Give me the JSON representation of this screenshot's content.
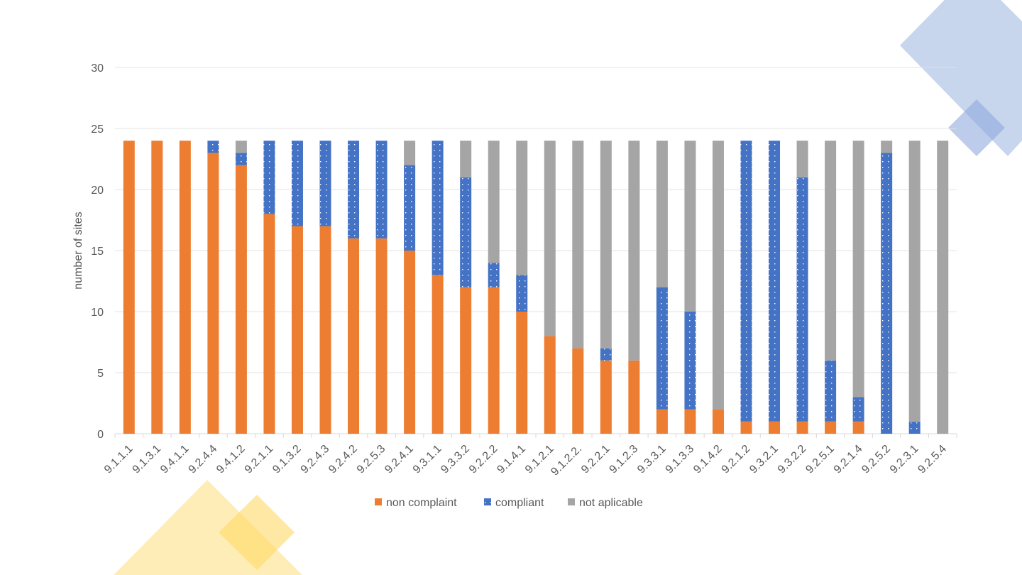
{
  "chart_data": {
    "type": "bar",
    "stacked": true,
    "title": "",
    "xlabel": "",
    "ylabel": "number of sites",
    "ylim": [
      0,
      30
    ],
    "yticks": [
      0,
      5,
      10,
      15,
      20,
      25,
      30
    ],
    "grid": true,
    "legend_position": "bottom",
    "categories": [
      "9.1.1.1",
      "9.1.3.1",
      "9.4.1.1",
      "9.2.4.4",
      "9.4.1.2",
      "9.2.1.1",
      "9.1.3.2",
      "9.2.4.3",
      "9.2.4.2",
      "9.2.5.3",
      "9.2.4.1",
      "9.3.1.1",
      "9.3.3.2",
      "9.2.2.2",
      "9.1.4.1",
      "9.1.2.1",
      "9.1.2.2.",
      "9.2.2.1",
      "9.1.2.3",
      "9.3.3.1",
      "9.1.3.3",
      "9.1.4.2",
      "9.2.1.2",
      "9.3.2.1",
      "9.3.2.2",
      "9.2.5.1",
      "9.2.1.4",
      "9.2.5.2",
      "9.2.3.1",
      "9.2.5.4"
    ],
    "series": [
      {
        "name": "non complaint",
        "color": "#ED7D31",
        "values": [
          24,
          24,
          24,
          23,
          22,
          18,
          17,
          17,
          16,
          16,
          15,
          13,
          12,
          12,
          10,
          8,
          7,
          6,
          6,
          2,
          2,
          2,
          1,
          1,
          1,
          1,
          1,
          0,
          0,
          0
        ]
      },
      {
        "name": "compliant",
        "color": "#4472C4",
        "pattern": "dotted",
        "values": [
          0,
          0,
          0,
          1,
          1,
          6,
          7,
          7,
          8,
          8,
          7,
          11,
          9,
          2,
          3,
          0,
          0,
          1,
          0,
          10,
          8,
          0,
          23,
          23,
          20,
          5,
          2,
          23,
          1,
          0
        ]
      },
      {
        "name": "not aplicable",
        "color": "#A5A5A5",
        "values": [
          0,
          0,
          0,
          0,
          1,
          0,
          0,
          0,
          0,
          0,
          2,
          0,
          3,
          10,
          11,
          16,
          17,
          17,
          18,
          12,
          14,
          22,
          0,
          0,
          3,
          18,
          21,
          1,
          23,
          24
        ]
      }
    ]
  }
}
